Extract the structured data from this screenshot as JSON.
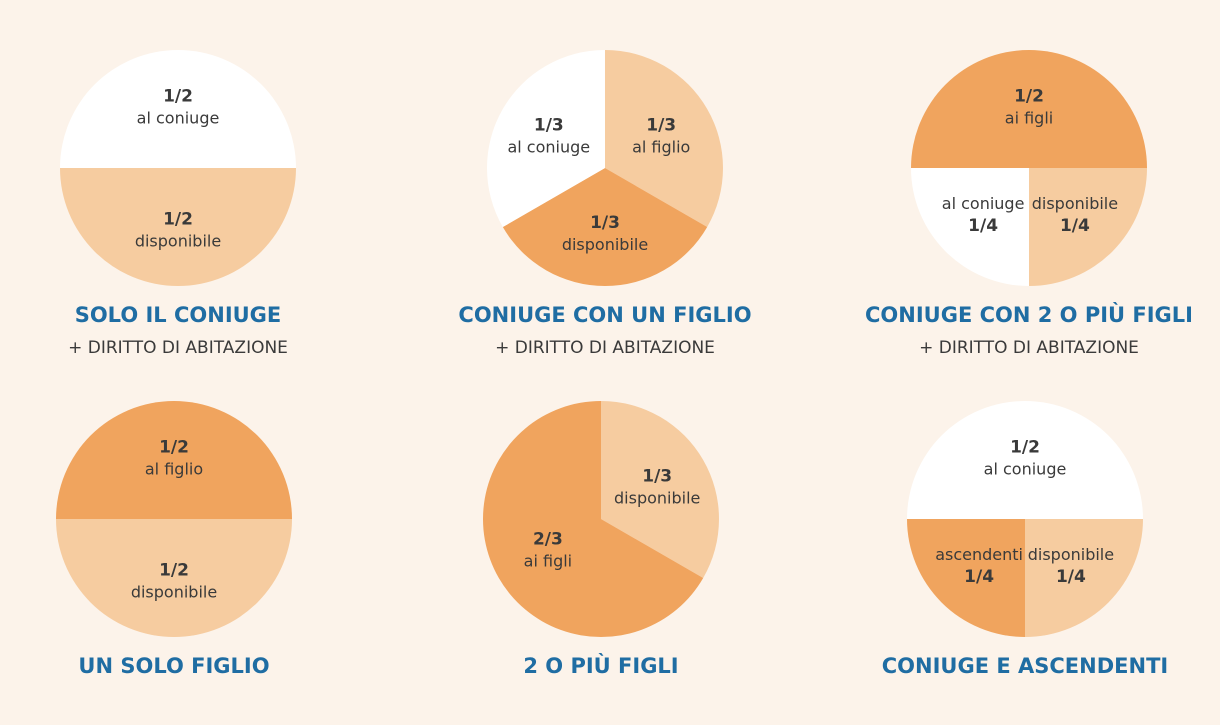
{
  "colors": {
    "white": "#ffffff",
    "light": "#f6cca0",
    "dark": "#f0a45e",
    "title": "#1f6da3",
    "text": "#3a3a3a"
  },
  "chart_data": [
    {
      "type": "pie",
      "title": "SOLO IL CONIUGE",
      "subtitle": "+ DIRITTO DI ABITAZIONE",
      "slices": [
        {
          "fraction": "1/2",
          "label": "al coniuge",
          "value": 0.5,
          "color": "white"
        },
        {
          "fraction": "1/2",
          "label": "disponibile",
          "value": 0.5,
          "color": "light"
        }
      ]
    },
    {
      "type": "pie",
      "title": "CONIUGE CON UN FIGLIO",
      "subtitle": "+ DIRITTO DI ABITAZIONE",
      "slices": [
        {
          "fraction": "1/3",
          "label": "al figlio",
          "value": 0.3333,
          "color": "light"
        },
        {
          "fraction": "1/3",
          "label": "disponibile",
          "value": 0.3333,
          "color": "dark"
        },
        {
          "fraction": "1/3",
          "label": "al coniuge",
          "value": 0.3333,
          "color": "white"
        }
      ]
    },
    {
      "type": "pie",
      "title": "CONIUGE CON 2 O PIÙ FIGLI",
      "subtitle": "+ DIRITTO DI ABITAZIONE",
      "slices": [
        {
          "fraction": "1/2",
          "label": "ai figli",
          "value": 0.5,
          "color": "dark"
        },
        {
          "fraction": "1/4",
          "label": "disponibile",
          "value": 0.25,
          "color": "light",
          "order": "label-first"
        },
        {
          "fraction": "1/4",
          "label": "al coniuge",
          "value": 0.25,
          "color": "white",
          "order": "label-first"
        }
      ]
    },
    {
      "type": "pie",
      "title": "UN SOLO FIGLIO",
      "subtitle": "",
      "slices": [
        {
          "fraction": "1/2",
          "label": "al figlio",
          "value": 0.5,
          "color": "dark"
        },
        {
          "fraction": "1/2",
          "label": "disponibile",
          "value": 0.5,
          "color": "light"
        }
      ]
    },
    {
      "type": "pie",
      "title": "2 O PIÙ FIGLI",
      "subtitle": "",
      "slices": [
        {
          "fraction": "1/3",
          "label": "disponibile",
          "value": 0.3333,
          "color": "light"
        },
        {
          "fraction": "2/3",
          "label": "ai figli",
          "value": 0.6667,
          "color": "dark"
        }
      ]
    },
    {
      "type": "pie",
      "title": "CONIUGE E ASCENDENTI",
      "subtitle": "",
      "slices": [
        {
          "fraction": "1/2",
          "label": "al coniuge",
          "value": 0.5,
          "color": "white"
        },
        {
          "fraction": "1/4",
          "label": "disponibile",
          "value": 0.25,
          "color": "light",
          "order": "label-first"
        },
        {
          "fraction": "1/4",
          "label": "ascendenti",
          "value": 0.25,
          "color": "dark",
          "order": "label-first"
        }
      ]
    }
  ]
}
